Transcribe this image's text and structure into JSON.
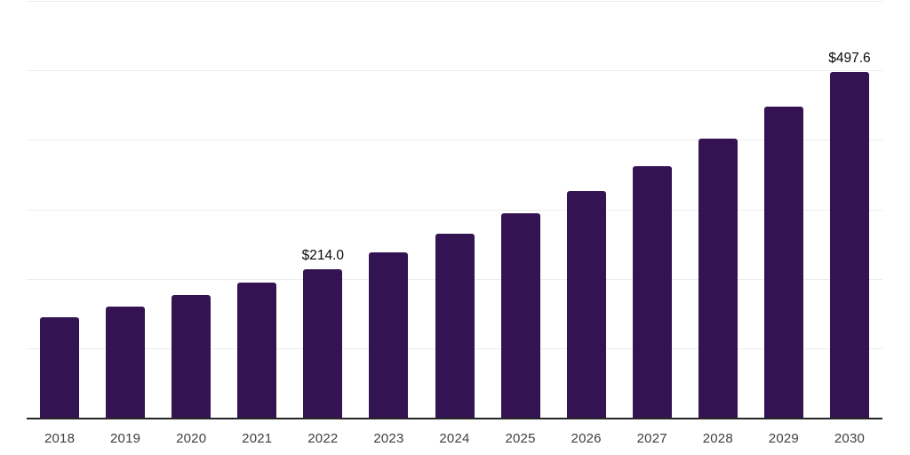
{
  "chart_style": {
    "background_color": "#ffffff",
    "bar_color": "#341352",
    "gridline_color": "#ededed",
    "axis_color": "#262626",
    "tick_label_color": "#404040",
    "value_label_color": "#0a0a0a"
  },
  "chart_data": {
    "type": "bar",
    "title": "",
    "xlabel": "",
    "ylabel": "",
    "categories": [
      "2018",
      "2019",
      "2020",
      "2021",
      "2022",
      "2023",
      "2024",
      "2025",
      "2026",
      "2027",
      "2028",
      "2029",
      "2030"
    ],
    "values": [
      145,
      160,
      176,
      194,
      214.0,
      238,
      265,
      294,
      326,
      362,
      402,
      448,
      497.6
    ],
    "data_labels": [
      "",
      "",
      "",
      "",
      "$214.0",
      "",
      "",
      "",
      "",
      "",
      "",
      "",
      "$497.6"
    ],
    "ylim": [
      0,
      600
    ],
    "gridline_step": 100,
    "grid": true,
    "legend": false,
    "y_axis_labels_visible": false
  }
}
